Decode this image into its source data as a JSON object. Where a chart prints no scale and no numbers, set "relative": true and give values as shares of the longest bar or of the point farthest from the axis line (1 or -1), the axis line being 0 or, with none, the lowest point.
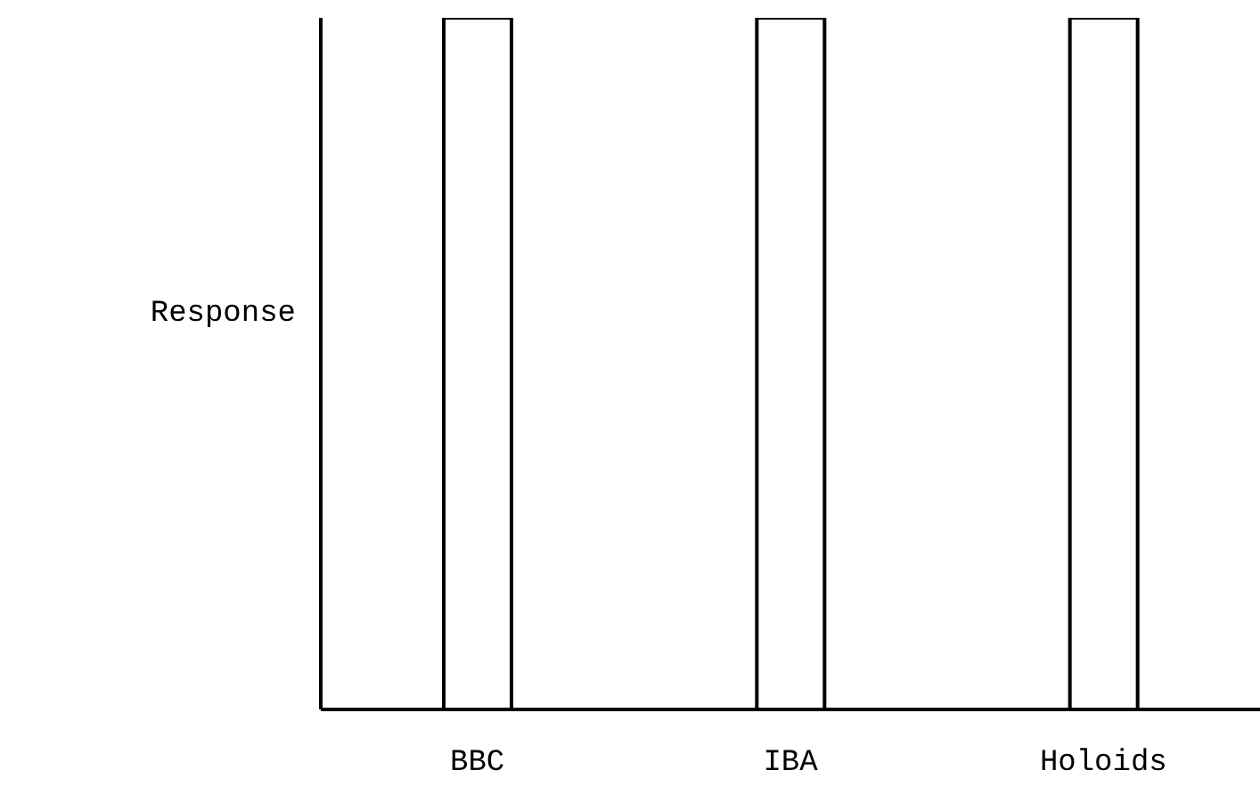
{
  "chart_data": {
    "type": "bar",
    "ylabel": "Response",
    "relative": true,
    "categories": [
      "BBC",
      "IBA",
      "Holoids"
    ],
    "values": [
      1,
      1,
      1
    ],
    "color": "#ffffff"
  }
}
